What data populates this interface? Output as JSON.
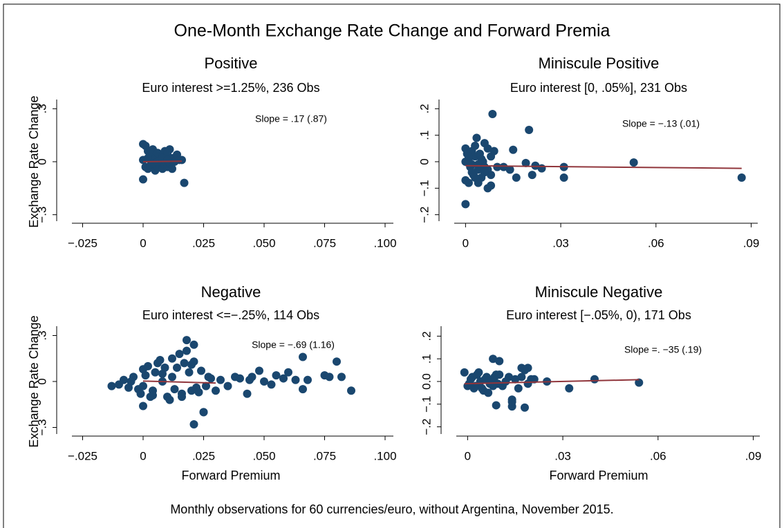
{
  "title": "One-Month Exchange Rate Change and Forward Premia",
  "footer": "Monthly observations for 60 currencies/euro, without Argentina, November 2015.",
  "chart_data": [
    {
      "type": "scatter",
      "title": "Positive",
      "subtitle": "Euro interest >=1.25%, 236 Obs",
      "annotation": "Slope = .17 (.87)",
      "ylabel": "Exchange Rate Change",
      "color": "#1a476f",
      "fit_color": "#90353b",
      "xlim": [
        -0.03,
        0.104
      ],
      "ylim": [
        -0.36,
        0.36
      ],
      "xticks": [
        {
          "value": -0.025,
          "label": "−.025"
        },
        0,
        {
          "value": 0.025,
          "label": ".025"
        },
        {
          "value": 0.05,
          "label": ".050"
        },
        {
          "value": 0.075,
          "label": ".075"
        },
        {
          "value": 0.1,
          "label": ".100"
        }
      ],
      "yticks": [
        {
          "value": -0.3,
          "label": "−.3"
        },
        0,
        {
          "value": 0.3,
          "label": ".3"
        }
      ],
      "x": [
        0,
        0.001,
        0.002,
        0.003,
        0.004,
        0.005,
        0.006,
        0.007,
        0.008,
        0.009,
        0.01,
        0.011,
        0.012,
        0.013,
        0.014,
        0.015,
        0.016,
        0.017,
        0.0,
        0.001,
        0.002,
        0.003,
        0.004,
        0.005,
        0.006,
        0.007,
        0.008,
        0.009,
        0.01,
        0.011,
        0.012,
        0.0,
        0.002,
        0.004,
        0.006,
        0.008,
        0.01
      ],
      "y": [
        0.1,
        0.09,
        0.06,
        0.04,
        0.07,
        0.02,
        0.05,
        -0.02,
        0.03,
        0.06,
        0.05,
        0.07,
        0.02,
        0.0,
        0.04,
        0.01,
        0.01,
        -0.12,
        -0.1,
        -0.03,
        -0.04,
        -0.02,
        0.0,
        -0.05,
        -0.03,
        0.01,
        -0.04,
        -0.02,
        -0.03,
        -0.01,
        -0.04,
        0.01,
        0.02,
        -0.01,
        0.0,
        0.02,
        0.01
      ],
      "fit": {
        "x": [
          0,
          0.016
        ],
        "y": [
          0.0,
          0.003
        ]
      }
    },
    {
      "type": "scatter",
      "title": "Miniscule Positive",
      "subtitle": "Euro interest [0, .05%], 231 Obs",
      "annotation": "Slope = −.13 (.01)",
      "color": "#1a476f",
      "fit_color": "#90353b",
      "xlim": [
        -0.004,
        0.0925
      ],
      "ylim": [
        -0.24,
        0.24
      ],
      "xticks": [
        0,
        {
          "value": 0.03,
          "label": ".03"
        },
        {
          "value": 0.06,
          "label": ".06"
        },
        {
          "value": 0.09,
          "label": ".09"
        }
      ],
      "yticks": [
        {
          "value": -0.2,
          "label": "−.2"
        },
        {
          "value": -0.1,
          "label": "−.1"
        },
        0,
        {
          "value": 0.1,
          "label": ".1"
        },
        {
          "value": 0.2,
          "label": ".2"
        }
      ],
      "x": [
        0,
        0.0005,
        0.001,
        0.0015,
        0.002,
        0.0025,
        0.003,
        0.0035,
        0.004,
        0.0045,
        0.005,
        0.0055,
        0.006,
        0.007,
        0.008,
        0.009,
        0.01,
        0,
        0.001,
        0.002,
        0.003,
        0.004,
        0.005,
        0.006,
        0.007,
        0.008,
        0.0,
        0.001,
        0.002,
        0.003,
        0.004,
        0.006,
        0.0085,
        0.02,
        0.0,
        0.053,
        0.087,
        0.031,
        0.031,
        0.015,
        0.016,
        0.021,
        0.024,
        0.019,
        0.022,
        0.012,
        0.014,
        0.007,
        0.008
      ],
      "y": [
        0.05,
        0.03,
        0.01,
        -0.02,
        0.04,
        -0.05,
        0.02,
        0.09,
        -0.01,
        0.03,
        -0.06,
        0.0,
        0.07,
        -0.03,
        0.02,
        0.04,
        -0.02,
        -0.07,
        -0.08,
        -0.04,
        -0.06,
        -0.03,
        0.01,
        -0.02,
        0.05,
        -0.05,
        0.0,
        0.02,
        -0.01,
        0.06,
        -0.08,
        -0.04,
        0.18,
        0.12,
        -0.16,
        -0.003,
        -0.06,
        -0.06,
        -0.02,
        0.045,
        -0.06,
        -0.05,
        -0.025,
        -0.005,
        -0.015,
        -0.02,
        -0.03,
        -0.1,
        -0.09
      ],
      "fit": {
        "x": [
          0,
          0.087
        ],
        "y": [
          -0.015,
          -0.025
        ]
      }
    },
    {
      "type": "scatter",
      "title": "Negative",
      "subtitle": "Euro interest <=−.25%, 114 Obs",
      "annotation": "Slope = −.69 (1.16)",
      "ylabel": "Exchange Rate Change",
      "xlabel": "Forward Premium",
      "color": "#1a476f",
      "fit_color": "#90353b",
      "xlim": [
        -0.03,
        0.104
      ],
      "ylim": [
        -0.37,
        0.37
      ],
      "xticks": [
        {
          "value": -0.025,
          "label": "−.025"
        },
        0,
        {
          "value": 0.025,
          "label": ".025"
        },
        {
          "value": 0.05,
          "label": ".050"
        },
        {
          "value": 0.075,
          "label": ".075"
        },
        {
          "value": 0.1,
          "label": ".100"
        }
      ],
      "yticks": [
        {
          "value": -0.3,
          "label": "−.3"
        },
        0,
        {
          "value": 0.3,
          "label": ".3"
        }
      ],
      "x": [
        -0.013,
        -0.01,
        -0.008,
        -0.006,
        -0.004,
        -0.002,
        0,
        0.002,
        0.004,
        0.006,
        0.008,
        0.01,
        0.012,
        0.014,
        0.016,
        0.018,
        0.02,
        0.022,
        0.024,
        0.026,
        0.028,
        0.03,
        -0.005,
        -0.001,
        0.003,
        0.007,
        0.011,
        0.015,
        0.019,
        0.023,
        0.027,
        0.001,
        0.005,
        0.009,
        0.013,
        0.017,
        0.021,
        0.0,
        0.004,
        0.008,
        0.012,
        0.016,
        0.02,
        0.018,
        0.021,
        0.021,
        0.025,
        0.025,
        0.032,
        0.035,
        0.038,
        0.04,
        0.043,
        0.045,
        0.048,
        0.05,
        0.053,
        0.055,
        0.058,
        0.06,
        0.063,
        0.066,
        0.068,
        0.075,
        0.077,
        0.08,
        0.082,
        0.086,
        0.066,
        0.044,
        0.0
      ],
      "y": [
        -0.03,
        -0.02,
        0.01,
        -0.04,
        0.03,
        -0.05,
        0.08,
        0.1,
        -0.06,
        0.12,
        0.05,
        -0.1,
        0.15,
        0.09,
        -0.08,
        0.2,
        0.11,
        -0.04,
        0.07,
        -0.03,
        0.02,
        -0.06,
        0.0,
        -0.08,
        -0.1,
        0.14,
        -0.12,
        0.18,
        0.06,
        -0.07,
        0.03,
        0.04,
        0.06,
        0.09,
        -0.05,
        0.12,
        0.13,
        -0.03,
        -0.09,
        0.0,
        0.03,
        -0.1,
        -0.06,
        0.27,
        0.24,
        -0.28,
        -0.2,
        -0.2,
        0.01,
        -0.03,
        0.03,
        0.02,
        -0.08,
        0.03,
        0.07,
        0.0,
        -0.02,
        0.04,
        0.02,
        0.06,
        0.01,
        0.16,
        0.01,
        0.04,
        0.03,
        0.13,
        0.03,
        -0.06,
        -0.05,
        0.01,
        -0.16
      ],
      "fit": {
        "x": [
          0,
          0.03
        ],
        "y": [
          0.003,
          -0.01
        ]
      }
    },
    {
      "type": "scatter",
      "title": "Miniscule Negative",
      "subtitle": "Euro interest [−.05%, 0), 171 Obs",
      "annotation": "Slope =. −35 (.19)",
      "xlabel": "Forward Premium",
      "color": "#1a476f",
      "fit_color": "#90353b",
      "xlim": [
        -0.004,
        0.0925
      ],
      "ylim": [
        -0.25,
        0.25
      ],
      "xticks": [
        0,
        {
          "value": 0.03,
          "label": ".03"
        },
        {
          "value": 0.06,
          "label": ".06"
        },
        {
          "value": 0.09,
          "label": ".09"
        }
      ],
      "yticks": [
        {
          "value": -0.2,
          "label": "−.2"
        },
        {
          "value": -0.1,
          "label": "−.1"
        },
        {
          "value": 0,
          "label": "0.0"
        },
        {
          "value": 0.1,
          "label": ".1"
        },
        {
          "value": 0.2,
          "label": ".2"
        }
      ],
      "x": [
        -0.001,
        0.0,
        0.001,
        0.002,
        0.003,
        0.004,
        0.005,
        0.006,
        0.007,
        0.008,
        0.009,
        0.01,
        0.011,
        0.012,
        0.013,
        0.014,
        0.015,
        0.016,
        0.017,
        0.018,
        0.019,
        0.02,
        0.021,
        0.0005,
        0.0015,
        0.0025,
        0.0035,
        0.0045,
        0.0055,
        0.0065,
        0.0075,
        0.0085,
        0.0095,
        0.008,
        0.01,
        0.017,
        0.019,
        0.025,
        0.032,
        0.04,
        0.054,
        0.018,
        0.014,
        0.014,
        0.009
      ],
      "y": [
        0.04,
        -0.02,
        0.01,
        -0.03,
        0.03,
        0.0,
        -0.04,
        0.02,
        -0.01,
        0.1,
        0.03,
        0.09,
        -0.02,
        0.0,
        0.02,
        -0.08,
        0.01,
        -0.03,
        0.06,
        0.05,
        0.06,
        0.01,
        0.01,
        -0.01,
        0.02,
        -0.02,
        0.04,
        -0.03,
        0.01,
        -0.05,
        0.0,
        0.02,
        -0.01,
        -0.02,
        0.03,
        0.02,
        -0.01,
        0.0,
        -0.03,
        0.01,
        -0.005,
        -0.115,
        -0.11,
        -0.09,
        -0.105
      ],
      "fit": {
        "x": [
          -0.001,
          0.054
        ],
        "y": [
          -0.01,
          0.008
        ]
      }
    }
  ]
}
